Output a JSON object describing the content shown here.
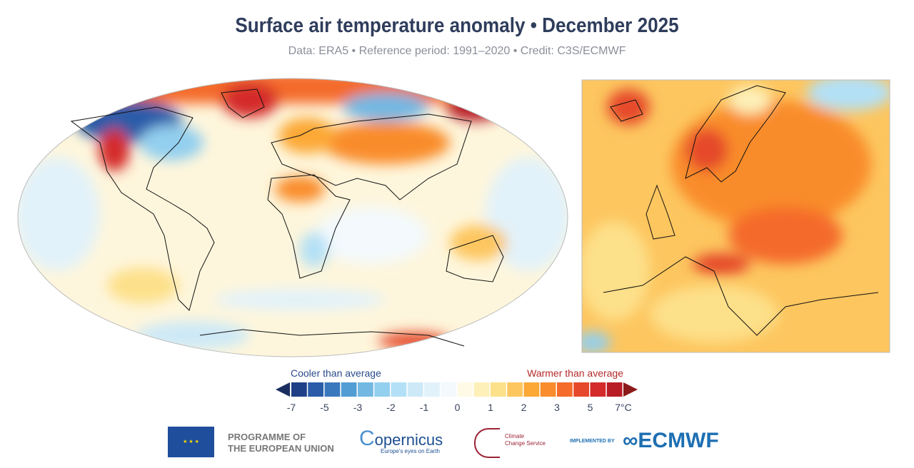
{
  "title": "Surface air temperature anomaly • December 2025",
  "subtitle": "Data: ERA5 • Reference period: 1991–2020 • Credit: C3S/ECMWF",
  "legend": {
    "cool_label": "Cooler than average",
    "warm_label": "Warmer than average",
    "ticks": [
      "-7",
      "-5",
      "-3",
      "-2",
      "-1",
      "0",
      "1",
      "2",
      "3",
      "5",
      "7°C"
    ],
    "colors": [
      "#1f3f86",
      "#2a5ca8",
      "#3a78be",
      "#529dd4",
      "#72b8e2",
      "#93cfef",
      "#b3e0f6",
      "#cde9f7",
      "#e2f2fa",
      "#f3f9fd",
      "#fefae6",
      "#fdf0b8",
      "#fde08a",
      "#fdc65f",
      "#fca836",
      "#f98c2c",
      "#f46b2a",
      "#e5482a",
      "#d42a2a",
      "#b81d25"
    ],
    "low_arrow_color": "#1a2e5e",
    "high_arrow_color": "#8c1a1a"
  },
  "logos": {
    "eu": "PROGRAMME OF THE EUROPEAN UNION",
    "eu_line1": "PROGRAMME OF",
    "eu_line2": "THE EUROPEAN UNION",
    "copernicus": "opernicus",
    "copernicus_tag": "Europe's eyes on Earth",
    "c3s_line1": "Climate",
    "c3s_line2": "Change Service",
    "implemented": "IMPLEMENTED BY",
    "ecmwf": "ECMWF"
  }
}
